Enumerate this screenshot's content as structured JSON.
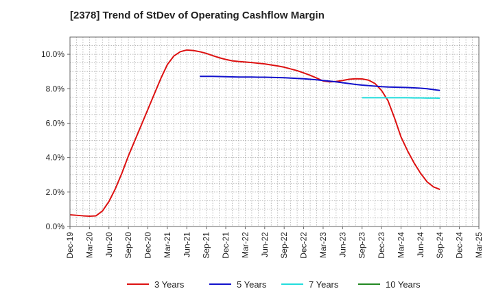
{
  "chart_data": {
    "type": "line",
    "title": "[2378]  Trend of StDev of Operating Cashflow Margin",
    "xlabel": "",
    "ylabel": "",
    "ylim": [
      0,
      11
    ],
    "y_ticks": [
      "0.0%",
      "2.0%",
      "4.0%",
      "6.0%",
      "8.0%",
      "10.0%"
    ],
    "y_tick_values": [
      0,
      2,
      4,
      6,
      8,
      10
    ],
    "x_ticks": [
      "Dec-19",
      "Mar-20",
      "Jun-20",
      "Sep-20",
      "Dec-20",
      "Mar-21",
      "Jun-21",
      "Sep-21",
      "Dec-21",
      "Mar-22",
      "Jun-22",
      "Sep-22",
      "Dec-22",
      "Mar-23",
      "Jun-23",
      "Sep-23",
      "Dec-23",
      "Mar-24",
      "Jun-24",
      "Sep-24",
      "Dec-24",
      "Mar-25"
    ],
    "x_start": "Dec-19",
    "grid": true,
    "legend_position": "bottom",
    "series": [
      {
        "name": "3 Years",
        "color": "#dd1111",
        "points": [
          [
            "Dec-19",
            0.68
          ],
          [
            "Jan-20",
            0.65
          ],
          [
            "Feb-20",
            0.62
          ],
          [
            "Mar-20",
            0.6
          ],
          [
            "Apr-20",
            0.62
          ],
          [
            "May-20",
            0.9
          ],
          [
            "Jun-20",
            1.45
          ],
          [
            "Jul-20",
            2.2
          ],
          [
            "Aug-20",
            3.1
          ],
          [
            "Sep-20",
            4.1
          ],
          [
            "Oct-20",
            5.0
          ],
          [
            "Nov-20",
            5.9
          ],
          [
            "Dec-20",
            6.8
          ],
          [
            "Jan-21",
            7.7
          ],
          [
            "Feb-21",
            8.6
          ],
          [
            "Mar-21",
            9.4
          ],
          [
            "Apr-21",
            9.9
          ],
          [
            "May-21",
            10.15
          ],
          [
            "Jun-21",
            10.25
          ],
          [
            "Jul-21",
            10.22
          ],
          [
            "Aug-21",
            10.15
          ],
          [
            "Sep-21",
            10.05
          ],
          [
            "Oct-21",
            9.92
          ],
          [
            "Nov-21",
            9.8
          ],
          [
            "Dec-21",
            9.7
          ],
          [
            "Jan-22",
            9.62
          ],
          [
            "Feb-22",
            9.58
          ],
          [
            "Mar-22",
            9.55
          ],
          [
            "Apr-22",
            9.52
          ],
          [
            "May-22",
            9.48
          ],
          [
            "Jun-22",
            9.44
          ],
          [
            "Jul-22",
            9.38
          ],
          [
            "Aug-22",
            9.32
          ],
          [
            "Sep-22",
            9.25
          ],
          [
            "Oct-22",
            9.15
          ],
          [
            "Nov-22",
            9.05
          ],
          [
            "Dec-22",
            8.92
          ],
          [
            "Jan-23",
            8.78
          ],
          [
            "Feb-23",
            8.62
          ],
          [
            "Mar-23",
            8.45
          ],
          [
            "Apr-23",
            8.4
          ],
          [
            "May-23",
            8.42
          ],
          [
            "Jun-23",
            8.48
          ],
          [
            "Jul-23",
            8.55
          ],
          [
            "Aug-23",
            8.58
          ],
          [
            "Sep-23",
            8.57
          ],
          [
            "Oct-23",
            8.5
          ],
          [
            "Nov-23",
            8.3
          ],
          [
            "Dec-23",
            7.9
          ],
          [
            "Jan-24",
            7.3
          ],
          [
            "Feb-24",
            6.3
          ],
          [
            "Mar-24",
            5.2
          ],
          [
            "Apr-24",
            4.4
          ],
          [
            "May-24",
            3.7
          ],
          [
            "Jun-24",
            3.1
          ],
          [
            "Jul-24",
            2.6
          ],
          [
            "Aug-24",
            2.3
          ],
          [
            "Sep-24",
            2.15
          ]
        ]
      },
      {
        "name": "5 Years",
        "color": "#1111cc",
        "points": [
          [
            "Aug-21",
            8.72
          ],
          [
            "Sep-21",
            8.72
          ],
          [
            "Oct-21",
            8.72
          ],
          [
            "Nov-21",
            8.71
          ],
          [
            "Dec-21",
            8.7
          ],
          [
            "Jan-22",
            8.69
          ],
          [
            "Feb-22",
            8.68
          ],
          [
            "Mar-22",
            8.68
          ],
          [
            "Apr-22",
            8.68
          ],
          [
            "May-22",
            8.67
          ],
          [
            "Jun-22",
            8.67
          ],
          [
            "Jul-22",
            8.66
          ],
          [
            "Aug-22",
            8.65
          ],
          [
            "Sep-22",
            8.64
          ],
          [
            "Oct-22",
            8.62
          ],
          [
            "Nov-22",
            8.6
          ],
          [
            "Dec-22",
            8.58
          ],
          [
            "Jan-23",
            8.55
          ],
          [
            "Feb-23",
            8.52
          ],
          [
            "Mar-23",
            8.48
          ],
          [
            "Apr-23",
            8.44
          ],
          [
            "May-23",
            8.4
          ],
          [
            "Jun-23",
            8.35
          ],
          [
            "Jul-23",
            8.3
          ],
          [
            "Aug-23",
            8.25
          ],
          [
            "Sep-23",
            8.21
          ],
          [
            "Oct-23",
            8.18
          ],
          [
            "Nov-23",
            8.15
          ],
          [
            "Dec-23",
            8.12
          ],
          [
            "Jan-24",
            8.1
          ],
          [
            "Feb-24",
            8.09
          ],
          [
            "Mar-24",
            8.08
          ],
          [
            "Apr-24",
            8.07
          ],
          [
            "May-24",
            8.05
          ],
          [
            "Jun-24",
            8.03
          ],
          [
            "Jul-24",
            8.0
          ],
          [
            "Aug-24",
            7.95
          ],
          [
            "Sep-24",
            7.9
          ]
        ]
      },
      {
        "name": "7 Years",
        "color": "#22dddd",
        "points": [
          [
            "Sep-23",
            7.48
          ],
          [
            "Oct-23",
            7.48
          ],
          [
            "Nov-23",
            7.48
          ],
          [
            "Dec-23",
            7.48
          ],
          [
            "Jan-24",
            7.48
          ],
          [
            "Feb-24",
            7.48
          ],
          [
            "Mar-24",
            7.48
          ],
          [
            "Apr-24",
            7.48
          ],
          [
            "May-24",
            7.47
          ],
          [
            "Jun-24",
            7.47
          ],
          [
            "Jul-24",
            7.46
          ],
          [
            "Aug-24",
            7.46
          ],
          [
            "Sep-24",
            7.45
          ]
        ]
      },
      {
        "name": "10 Years",
        "color": "#228822",
        "points": []
      }
    ]
  }
}
